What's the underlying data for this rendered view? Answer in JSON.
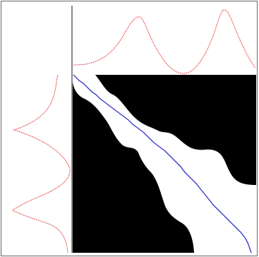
{
  "colors": {
    "background": "#ffffff",
    "frame": "#666666",
    "axis": "#111111",
    "matrix": "#000000",
    "path_band": "#ffffff",
    "signal": "#e63a3a",
    "warping_path": "#3a3acc"
  }
}
